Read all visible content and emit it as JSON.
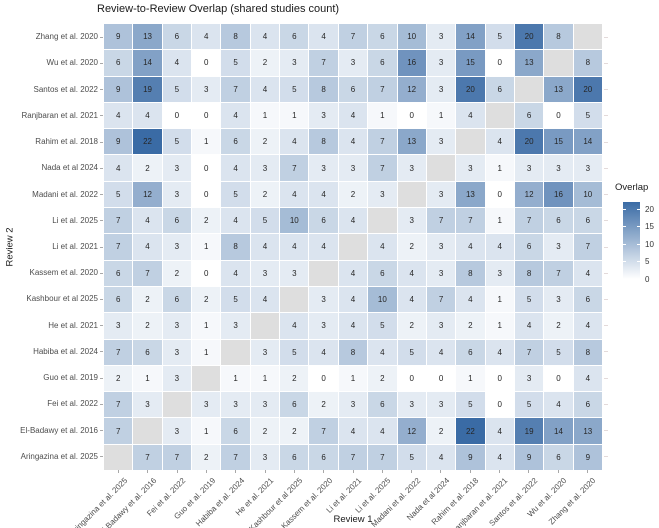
{
  "chart_data": {
    "type": "heatmap",
    "title": "Review-to-Review Overlap (shared studies count)",
    "xlabel": "Review 1",
    "ylabel": "Review 2",
    "x_categories": [
      "Aringazina et al. 2025",
      "El-Badawy et al. 2016",
      "Fei et al. 2022",
      "Guo et al. 2019",
      "Habiba et al. 2024",
      "He et al. 2021",
      "Kashbour et al 2025",
      "Kassem et al. 2020",
      "Li et al. 2021",
      "Li et al. 2025",
      "Madani et al. 2022",
      "Nada et al 2024",
      "Rahim et al. 2018",
      "Ranjbaran et al. 2021",
      "Santos et al. 2022",
      "Wu et al. 2020",
      "Zhang et al. 2020"
    ],
    "y_categories": [
      "Zhang et al. 2020",
      "Wu et al. 2020",
      "Santos et al. 2022",
      "Ranjbaran et al. 2021",
      "Rahim et al. 2018",
      "Nada et al 2024",
      "Madani et al. 2022",
      "Li et al. 2025",
      "Li et al. 2021",
      "Kassem et al. 2020",
      "Kashbour et al 2025",
      "He et al. 2021",
      "Habiba et al. 2024",
      "Guo et al. 2019",
      "Fei et al. 2022",
      "El-Badawy et al. 2016",
      "Aringazina et al. 2025"
    ],
    "matrix": [
      [
        9,
        13,
        6,
        4,
        8,
        4,
        6,
        4,
        7,
        6,
        10,
        3,
        14,
        5,
        20,
        8,
        null
      ],
      [
        6,
        14,
        4,
        0,
        5,
        2,
        3,
        7,
        3,
        6,
        16,
        3,
        15,
        0,
        13,
        null,
        8
      ],
      [
        9,
        19,
        5,
        3,
        7,
        4,
        5,
        8,
        6,
        7,
        12,
        3,
        20,
        6,
        null,
        13,
        20
      ],
      [
        4,
        4,
        0,
        0,
        4,
        1,
        1,
        3,
        4,
        1,
        0,
        1,
        4,
        null,
        6,
        0,
        5
      ],
      [
        9,
        22,
        5,
        1,
        6,
        2,
        4,
        8,
        4,
        7,
        13,
        3,
        null,
        4,
        20,
        15,
        14
      ],
      [
        4,
        2,
        3,
        0,
        4,
        3,
        7,
        3,
        3,
        7,
        3,
        null,
        3,
        1,
        3,
        3,
        3
      ],
      [
        5,
        12,
        3,
        0,
        5,
        2,
        4,
        4,
        2,
        3,
        null,
        3,
        13,
        0,
        12,
        16,
        10
      ],
      [
        7,
        4,
        6,
        2,
        4,
        5,
        10,
        6,
        4,
        null,
        3,
        7,
        7,
        1,
        7,
        6,
        6
      ],
      [
        7,
        4,
        3,
        1,
        8,
        4,
        4,
        4,
        null,
        4,
        2,
        3,
        4,
        4,
        6,
        3,
        7
      ],
      [
        6,
        7,
        2,
        0,
        4,
        3,
        3,
        null,
        4,
        6,
        4,
        3,
        8,
        3,
        8,
        7,
        4
      ],
      [
        6,
        2,
        6,
        2,
        5,
        4,
        null,
        3,
        4,
        10,
        4,
        7,
        4,
        1,
        5,
        3,
        6
      ],
      [
        3,
        2,
        3,
        1,
        3,
        null,
        4,
        3,
        4,
        5,
        2,
        3,
        2,
        1,
        4,
        2,
        4
      ],
      [
        7,
        6,
        3,
        1,
        null,
        3,
        5,
        4,
        8,
        4,
        5,
        4,
        6,
        4,
        7,
        5,
        8
      ],
      [
        2,
        1,
        3,
        null,
        1,
        1,
        2,
        0,
        1,
        2,
        0,
        0,
        1,
        0,
        3,
        0,
        4
      ],
      [
        7,
        3,
        null,
        3,
        3,
        3,
        6,
        2,
        3,
        6,
        3,
        3,
        5,
        0,
        5,
        4,
        6
      ],
      [
        7,
        null,
        3,
        1,
        6,
        2,
        2,
        7,
        4,
        4,
        12,
        2,
        22,
        4,
        19,
        14,
        13
      ],
      [
        null,
        7,
        7,
        2,
        7,
        3,
        6,
        6,
        7,
        7,
        5,
        4,
        9,
        4,
        9,
        6,
        9
      ]
    ],
    "legend": {
      "title": "Overlap",
      "ticks": [
        20,
        15,
        10,
        5,
        0
      ],
      "domain": [
        0,
        22
      ],
      "position": "right"
    },
    "colors": {
      "low": "#FFFFFF",
      "high": "#3A6BA5",
      "na_cell": "#DEDEDE",
      "cell_text": "#262626",
      "axis_text": "#4D4D4D",
      "title_text": "#1A1A1A"
    },
    "grid": false
  }
}
